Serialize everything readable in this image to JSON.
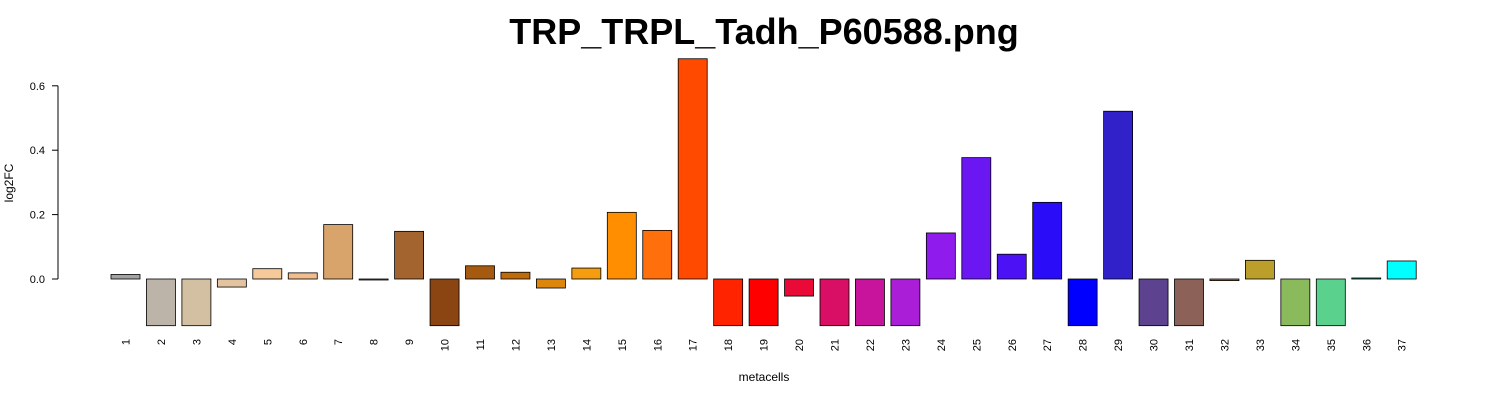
{
  "chart_data": {
    "type": "bar",
    "title": "TRP_TRPL_Tadh_P60588.png",
    "xlabel": "metacells",
    "ylabel": "log2FC",
    "ylim": [
      -0.15,
      0.7
    ],
    "yticks": [
      "0.0",
      "0.2",
      "0.4",
      "0.6"
    ],
    "ytick_values": [
      0.0,
      0.2,
      0.4,
      0.6
    ],
    "grid": false,
    "categories": [
      "1",
      "2",
      "3",
      "4",
      "5",
      "6",
      "7",
      "8",
      "9",
      "10",
      "11",
      "12",
      "13",
      "14",
      "15",
      "16",
      "17",
      "18",
      "19",
      "20",
      "21",
      "22",
      "23",
      "24",
      "25",
      "26",
      "27",
      "28",
      "29",
      "30",
      "31",
      "32",
      "33",
      "34",
      "35",
      "36",
      "37"
    ],
    "values": [
      0.014,
      -0.145,
      -0.145,
      -0.025,
      0.032,
      0.019,
      0.169,
      -0.003,
      0.148,
      -0.145,
      0.041,
      0.021,
      -0.028,
      0.034,
      0.207,
      0.151,
      0.684,
      -0.145,
      -0.145,
      -0.053,
      -0.145,
      -0.145,
      -0.145,
      0.143,
      0.377,
      0.077,
      0.238,
      -0.145,
      0.521,
      -0.145,
      -0.145,
      -0.005,
      0.058,
      -0.145,
      -0.145,
      0.001,
      0.056
    ],
    "colors": [
      "#a3a3a3",
      "#bcb4a8",
      "#d3bfa2",
      "#e4c4a0",
      "#f5c99a",
      "#f2bd8c",
      "#d9a46c",
      "#c2906a",
      "#a4642f",
      "#8a4512",
      "#a65a10",
      "#c06b0b",
      "#dc860c",
      "#f59c0f",
      "#ff8f00",
      "#ff6f0b",
      "#ff4a00",
      "#ff2300",
      "#ff0000",
      "#ea0a37",
      "#d80f64",
      "#c8139c",
      "#a91ed6",
      "#8f1cec",
      "#6a17f1",
      "#4d11f6",
      "#2a0cf9",
      "#0000ff",
      "#3022c8",
      "#5d4290",
      "#8c6158",
      "#b7813d",
      "#bc9f2a",
      "#8aba5c",
      "#5ad18d",
      "#29e8c5",
      "#00ffff"
    ]
  }
}
